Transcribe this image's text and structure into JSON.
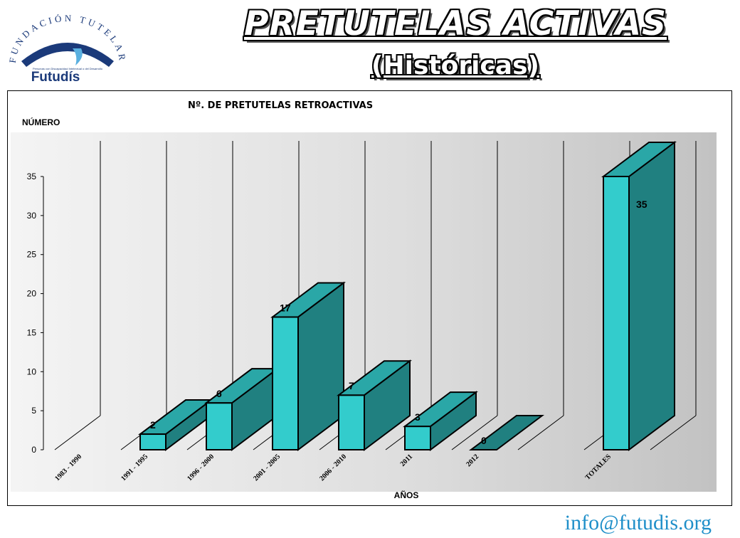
{
  "header": {
    "title": "PRETUTELAS ACTIVAS",
    "subtitle": "(Históricas)"
  },
  "logo": {
    "arc_text": "FUNDACIÓN TUTELAR",
    "banner_text": "CASTELLANO LEONESA",
    "tagline": "Personas con Discapacidad Intelectual o del Desarrollo",
    "brand": "Futudís"
  },
  "footer": {
    "email": "info@futudis.org"
  },
  "colors": {
    "bar_front": "#33cccc",
    "bar_top": "#2aa7a7",
    "bar_side": "#208080",
    "email": "#1f8fc9"
  },
  "chart_data": {
    "type": "bar",
    "title": "Nº. DE PRETUTELAS RETROACTIVAS",
    "ylabel": "NÚMERO",
    "xlabel": "AÑOS",
    "categories": [
      "1983 - 1990",
      "1991 - 1995",
      "1996 - 2000",
      "2001 - 2005",
      "2006 - 2010",
      "2011",
      "2012",
      "",
      "TOTALES"
    ],
    "values": [
      null,
      2,
      6,
      17,
      7,
      3,
      0,
      null,
      35
    ],
    "data_labels": [
      "",
      "2",
      "6",
      "17",
      "7",
      "3",
      "0",
      "",
      "35"
    ],
    "ylim": [
      0,
      35
    ],
    "yticks": [
      "0",
      "5",
      "10",
      "15",
      "20",
      "25",
      "30",
      "35"
    ],
    "grid": true,
    "legend": "none",
    "style": "3d-column"
  }
}
